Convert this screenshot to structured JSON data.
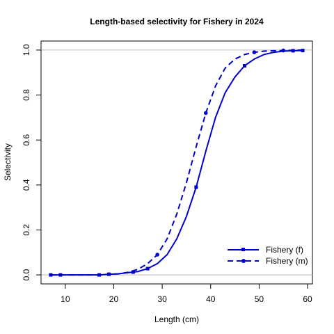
{
  "chart_data": {
    "type": "line",
    "title": "Length-based selectivity for Fishery in 2024",
    "xlabel": "Length (cm)",
    "ylabel": "Selectivity",
    "xlim": [
      5,
      61
    ],
    "ylim": [
      -0.04,
      1.04
    ],
    "x_ticks": [
      10,
      20,
      30,
      40,
      50,
      60
    ],
    "y_ticks": [
      0.0,
      0.2,
      0.4,
      0.6,
      0.8,
      1.0
    ],
    "x_tick_labels": [
      "10",
      "20",
      "30",
      "40",
      "50",
      "60"
    ],
    "y_tick_labels": [
      "0.0",
      "0.2",
      "0.4",
      "0.6",
      "0.8",
      "1.0"
    ],
    "reference_lines": [
      0,
      1
    ],
    "grid": false,
    "legend_position": "bottom-right",
    "series": [
      {
        "name": "Fishery (f)",
        "color": "#0000CD",
        "dash": "solid",
        "marker": "filled-square",
        "x": [
          7,
          9,
          11,
          13,
          15,
          17,
          19,
          21,
          23,
          25,
          27,
          29,
          31,
          33,
          35,
          37,
          39,
          41,
          43,
          45,
          47,
          49,
          51,
          53,
          55,
          57,
          59
        ],
        "y": [
          0.0,
          0.0,
          0.0,
          0.0,
          0.0,
          0.0,
          0.003,
          0.005,
          0.01,
          0.015,
          0.028,
          0.05,
          0.09,
          0.16,
          0.26,
          0.39,
          0.55,
          0.7,
          0.81,
          0.88,
          0.93,
          0.96,
          0.98,
          0.99,
          0.995,
          0.997,
          0.998
        ],
        "marker_x": [
          7,
          9,
          17,
          19,
          24,
          27,
          37,
          47,
          57,
          59
        ]
      },
      {
        "name": "Fishery (m)",
        "color": "#0000CD",
        "dash": "dashed",
        "marker": "filled-circle",
        "x": [
          7,
          9,
          11,
          13,
          15,
          17,
          19,
          21,
          23,
          25,
          27,
          29,
          31,
          33,
          35,
          37,
          39,
          41,
          43,
          45,
          47,
          49,
          51,
          53,
          55,
          57,
          59
        ],
        "y": [
          0.0,
          0.0,
          0.0,
          0.0,
          0.0,
          0.0,
          0.002,
          0.005,
          0.012,
          0.025,
          0.05,
          0.09,
          0.16,
          0.27,
          0.41,
          0.57,
          0.72,
          0.84,
          0.92,
          0.96,
          0.98,
          0.99,
          0.995,
          0.997,
          0.998,
          0.999,
          1.0
        ],
        "marker_x": [
          29,
          39,
          49,
          55
        ]
      }
    ]
  }
}
